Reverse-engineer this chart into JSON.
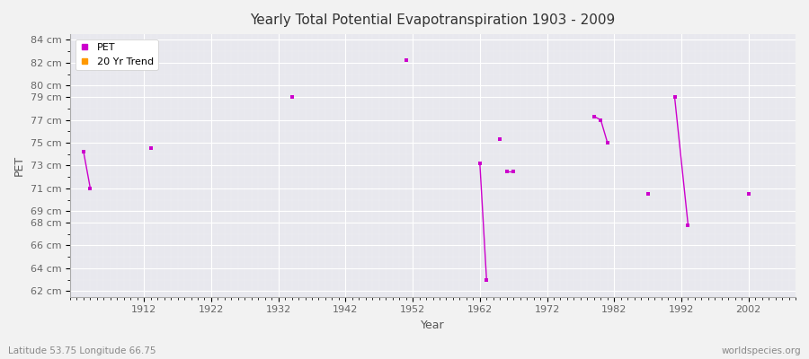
{
  "title": "Yearly Total Potential Evapotranspiration 1903 - 2009",
  "xlabel": "Year",
  "ylabel": "PET",
  "subtitle_lat_lon": "Latitude 53.75 Longitude 66.75",
  "watermark": "worldspecies.org",
  "ylim": [
    61.5,
    84.5
  ],
  "xlim": [
    1901,
    2009
  ],
  "ytick_values": [
    62,
    64,
    66,
    68,
    69,
    71,
    73,
    75,
    77,
    79,
    80,
    82,
    84
  ],
  "xtick_values": [
    1912,
    1922,
    1932,
    1942,
    1952,
    1962,
    1972,
    1982,
    1992,
    2002
  ],
  "pet_color": "#cc00cc",
  "trend_color": "#ff9900",
  "bg_color": "#f2f2f2",
  "plot_bg_color": "#e8e8ee",
  "grid_color": "#ffffff",
  "connected_groups": [
    [
      [
        1903,
        74.2
      ],
      [
        1904,
        71.0
      ]
    ],
    [
      [
        1962,
        73.2
      ],
      [
        1963,
        63.0
      ]
    ],
    [
      [
        1966,
        72.5
      ],
      [
        1967,
        72.5
      ]
    ],
    [
      [
        1979,
        77.3
      ],
      [
        1980,
        77.0
      ],
      [
        1981,
        75.0
      ]
    ],
    [
      [
        1991,
        79.0
      ],
      [
        1993,
        67.8
      ]
    ]
  ],
  "solo_points": [
    [
      1913,
      74.5
    ],
    [
      1934,
      79.0
    ],
    [
      1951,
      82.2
    ],
    [
      1965,
      75.3
    ],
    [
      1987,
      70.5
    ],
    [
      2002,
      70.5
    ]
  ]
}
